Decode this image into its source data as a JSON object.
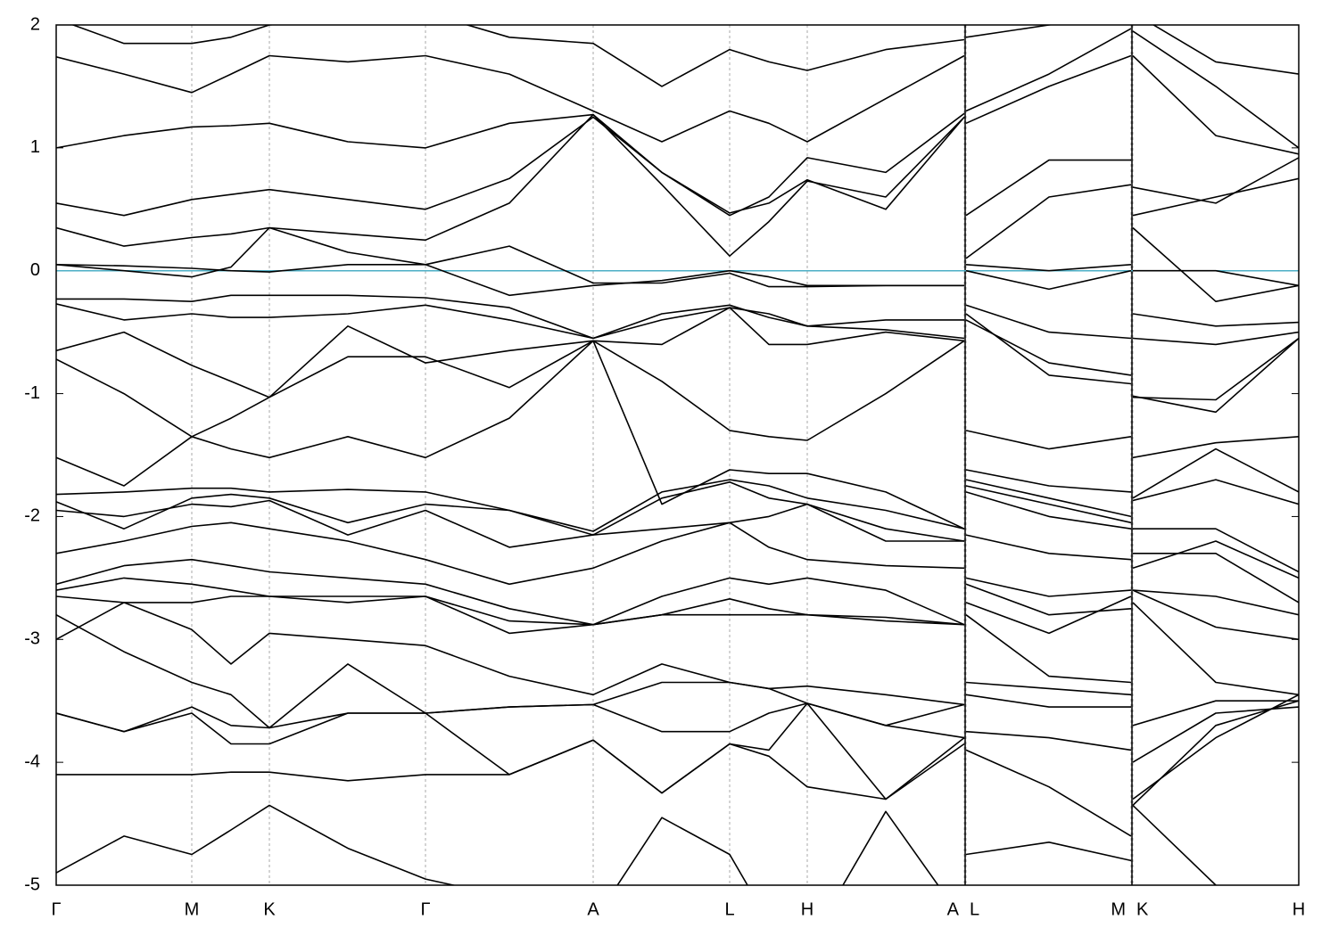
{
  "chart_data": {
    "type": "line",
    "x": [
      0,
      0.76,
      1.52,
      1.96,
      2.39,
      3.27,
      4.14,
      5.08,
      6.02,
      6.79,
      7.55,
      7.99,
      8.42,
      9.3,
      10.18,
      10.19,
      10.2,
      11.13,
      12.05,
      12.06,
      12.07,
      13.0,
      13.93
    ],
    "xlim": [
      0,
      13.93
    ],
    "ylim": [
      -5,
      2
    ],
    "xticks": [
      {
        "value": 0,
        "label": "Γ"
      },
      {
        "value": 1.52,
        "label": "M"
      },
      {
        "value": 2.39,
        "label": "K"
      },
      {
        "value": 4.14,
        "label": "Γ"
      },
      {
        "value": 6.02,
        "label": "A"
      },
      {
        "value": 7.55,
        "label": "L"
      },
      {
        "value": 8.42,
        "label": "H"
      },
      {
        "value": 10.18,
        "label": "A"
      },
      {
        "value": 10.2,
        "label": "L"
      },
      {
        "value": 12.05,
        "label": "M"
      },
      {
        "value": 12.07,
        "label": "K"
      },
      {
        "value": 13.93,
        "label": "H"
      }
    ],
    "yticks": [
      -5,
      -4,
      -3,
      -2,
      -1,
      0,
      1,
      2
    ],
    "xgrid": true,
    "line_color": "#000000",
    "hline": 0,
    "hline_color": "#4dafc6",
    "series": [
      {
        "values": [
          2.05,
          1.85,
          1.85,
          1.9,
          2.0,
          2.05,
          2.1,
          1.9,
          1.85,
          1.5,
          1.8,
          1.7,
          1.63,
          1.8,
          1.88,
          null,
          1.9,
          2.0,
          2.1,
          null,
          2.1,
          1.7,
          1.6
        ]
      },
      {
        "values": [
          1.74,
          1.6,
          1.45,
          1.6,
          1.75,
          1.7,
          1.75,
          1.6,
          1.3,
          1.05,
          1.3,
          1.2,
          1.05,
          1.4,
          1.75,
          null,
          1.3,
          1.6,
          1.97,
          null,
          1.95,
          1.5,
          1.0
        ]
      },
      {
        "values": [
          1.0,
          1.1,
          1.17,
          1.18,
          1.2,
          1.05,
          1.0,
          1.2,
          1.27,
          0.8,
          0.45,
          0.6,
          0.92,
          0.8,
          1.28,
          null,
          1.2,
          1.5,
          1.75,
          null,
          1.75,
          1.1,
          0.95
        ]
      },
      {
        "values": [
          0.55,
          0.45,
          0.58,
          0.62,
          0.66,
          0.58,
          0.5,
          0.75,
          1.25,
          0.8,
          0.47,
          0.55,
          0.74,
          0.5,
          1.25,
          null,
          0.45,
          0.9,
          0.9,
          null,
          0.68,
          0.55,
          0.92
        ]
      },
      {
        "values": [
          0.35,
          0.2,
          0.27,
          0.3,
          0.35,
          0.3,
          0.25,
          0.55,
          1.27,
          0.7,
          0.12,
          0.4,
          0.73,
          0.6,
          1.25,
          null,
          0.1,
          0.6,
          0.7,
          null,
          0.45,
          0.6,
          0.75
        ]
      },
      {
        "values": [
          0.05,
          0.04,
          0.02,
          0.0,
          -0.01,
          0.05,
          0.05,
          0.2,
          -0.1,
          -0.1,
          -0.02,
          -0.13,
          -0.13,
          -0.12,
          -0.12,
          null,
          0.05,
          0.0,
          0.05,
          null,
          0.0,
          0.0,
          -0.12
        ]
      },
      {
        "values": [
          0.05,
          0.0,
          -0.05,
          0.03,
          0.35,
          0.15,
          0.05,
          -0.2,
          -0.12,
          -0.08,
          0.0,
          -0.05,
          -0.12,
          -0.12,
          -0.12,
          null,
          0.0,
          -0.15,
          0.0,
          null,
          0.35,
          -0.25,
          -0.12
        ]
      },
      {
        "values": [
          -0.23,
          -0.23,
          -0.25,
          -0.2,
          -0.2,
          -0.2,
          -0.22,
          -0.3,
          -0.55,
          -0.4,
          -0.3,
          -0.35,
          -0.45,
          -0.4,
          -0.4,
          null,
          -0.28,
          -0.5,
          -0.55,
          null,
          -0.35,
          -0.45,
          -0.42
        ]
      },
      {
        "values": [
          -0.27,
          -0.4,
          -0.35,
          -0.38,
          -0.38,
          -0.35,
          -0.28,
          -0.4,
          -0.55,
          -0.35,
          -0.28,
          -0.38,
          -0.45,
          -0.48,
          -0.55,
          null,
          -0.4,
          -0.75,
          -0.85,
          null,
          -0.55,
          -0.6,
          -0.5
        ]
      },
      {
        "values": [
          -0.65,
          -0.5,
          -0.77,
          -0.9,
          -1.03,
          -0.45,
          -0.75,
          -0.65,
          -0.57,
          -0.6,
          -0.3,
          -0.6,
          -0.6,
          -0.5,
          -0.57,
          null,
          -0.35,
          -0.85,
          -0.92,
          null,
          -1.02,
          -1.15,
          -0.55
        ]
      },
      {
        "values": [
          -0.72,
          -1.0,
          -1.35,
          -1.2,
          -1.03,
          -0.7,
          -0.7,
          -0.95,
          -0.57,
          -0.9,
          -1.3,
          -1.35,
          -1.38,
          -1.0,
          -0.57,
          null,
          -1.3,
          -1.45,
          -1.35,
          null,
          -1.03,
          -1.05,
          -0.55
        ]
      },
      {
        "values": [
          -1.52,
          -1.75,
          -1.35,
          -1.45,
          -1.52,
          -1.35,
          -1.52,
          -1.2,
          -0.57,
          -1.9,
          -1.62,
          -1.65,
          -1.65,
          -1.8,
          -2.1,
          null,
          -1.62,
          -1.75,
          -1.8,
          null,
          -1.52,
          -1.4,
          -1.35
        ]
      },
      {
        "values": [
          -1.82,
          -1.8,
          -1.77,
          -1.77,
          -1.8,
          -1.78,
          -1.8,
          -1.95,
          -2.12,
          -1.8,
          -1.7,
          -1.75,
          -1.85,
          -1.95,
          -2.1,
          null,
          -1.7,
          -1.85,
          -2.0,
          null,
          -1.85,
          -1.45,
          -1.8
        ]
      },
      {
        "values": [
          -1.88,
          -2.1,
          -1.85,
          -1.82,
          -1.85,
          -2.05,
          -1.9,
          -1.95,
          -2.15,
          -1.85,
          -1.72,
          -1.85,
          -1.9,
          -2.1,
          -2.2,
          null,
          -1.75,
          -1.9,
          -2.05,
          null,
          -1.87,
          -1.7,
          -1.9
        ]
      },
      {
        "values": [
          -1.95,
          -2.0,
          -1.9,
          -1.92,
          -1.87,
          -2.15,
          -1.95,
          -2.25,
          -2.15,
          -2.1,
          -2.05,
          -2.0,
          -1.9,
          -2.2,
          -2.2,
          null,
          -1.8,
          -2.0,
          -2.1,
          null,
          -2.1,
          -2.1,
          -2.45
        ]
      },
      {
        "values": [
          -2.3,
          -2.2,
          -2.08,
          -2.05,
          -2.1,
          -2.2,
          -2.35,
          -2.55,
          -2.42,
          -2.2,
          -2.05,
          -2.25,
          -2.35,
          -2.4,
          -2.42,
          null,
          -2.15,
          -2.3,
          -2.35,
          null,
          -2.3,
          -2.3,
          -2.7
        ]
      },
      {
        "values": [
          -2.55,
          -2.4,
          -2.35,
          -2.4,
          -2.45,
          -2.5,
          -2.55,
          -2.75,
          -2.88,
          -2.65,
          -2.5,
          -2.55,
          -2.5,
          -2.6,
          -2.88,
          null,
          -2.5,
          -2.65,
          -2.6,
          null,
          -2.42,
          -2.2,
          -2.5
        ]
      },
      {
        "values": [
          -2.6,
          -2.5,
          -2.55,
          -2.6,
          -2.65,
          -2.65,
          -2.65,
          -2.85,
          -2.88,
          -2.8,
          -2.67,
          -2.75,
          -2.8,
          -2.82,
          -2.88,
          null,
          -2.55,
          -2.8,
          -2.75,
          null,
          -2.6,
          -2.65,
          -2.8
        ]
      },
      {
        "values": [
          -2.65,
          -2.7,
          -2.7,
          -2.65,
          -2.65,
          -2.7,
          -2.65,
          -2.95,
          -2.88,
          -2.8,
          -2.8,
          -2.8,
          -2.8,
          -2.85,
          -2.88,
          null,
          -2.7,
          -2.95,
          -2.65,
          null,
          -2.6,
          -2.9,
          -3.0
        ]
      },
      {
        "values": [
          -3.0,
          -2.7,
          -2.92,
          -3.2,
          -2.95,
          -3.0,
          -3.05,
          -3.3,
          -3.45,
          -3.2,
          -3.35,
          -3.4,
          -3.38,
          -3.45,
          -3.53,
          null,
          -2.8,
          -3.3,
          -3.35,
          null,
          -2.7,
          -3.35,
          -3.45
        ]
      },
      {
        "values": [
          -2.8,
          -3.1,
          -3.35,
          -3.45,
          -3.72,
          -3.2,
          -3.6,
          -3.55,
          -3.53,
          -3.35,
          -3.35,
          -3.4,
          -3.52,
          -3.7,
          -3.53,
          null,
          -3.35,
          -3.4,
          -3.45,
          null,
          -3.7,
          -3.5,
          -3.5
        ]
      },
      {
        "values": [
          -3.6,
          -3.75,
          -3.55,
          -3.7,
          -3.72,
          -3.6,
          -3.6,
          -3.55,
          -3.53,
          -3.75,
          -3.75,
          -3.6,
          -3.52,
          -3.7,
          -3.8,
          null,
          -3.45,
          -3.55,
          -3.55,
          null,
          -4.0,
          -3.6,
          -3.55
        ]
      },
      {
        "values": [
          -3.6,
          -3.75,
          -3.6,
          -3.85,
          -3.85,
          -3.6,
          -3.6,
          -4.1,
          -3.82,
          -4.25,
          -3.85,
          -3.9,
          -3.52,
          -4.3,
          -3.8,
          null,
          -3.75,
          -3.8,
          -3.9,
          null,
          -4.3,
          -3.8,
          -3.45
        ]
      },
      {
        "values": [
          -4.1,
          -4.1,
          -4.1,
          -4.08,
          -4.08,
          -4.15,
          -4.1,
          -4.1,
          -3.82,
          -4.25,
          -3.85,
          -3.95,
          -4.2,
          -4.3,
          -3.85,
          null,
          -3.9,
          -4.2,
          -4.6,
          null,
          -4.35,
          -3.7,
          -3.5
        ]
      },
      {
        "values": [
          -4.9,
          -4.6,
          -4.75,
          -4.55,
          -4.35,
          -4.7,
          -4.95,
          -5.1,
          -5.3,
          -4.45,
          -4.75,
          -5.3,
          -5.5,
          -4.4,
          -5.3,
          null,
          -4.75,
          -4.65,
          -4.8,
          null,
          -4.35,
          -5.0,
          -5.4
        ]
      }
    ]
  }
}
